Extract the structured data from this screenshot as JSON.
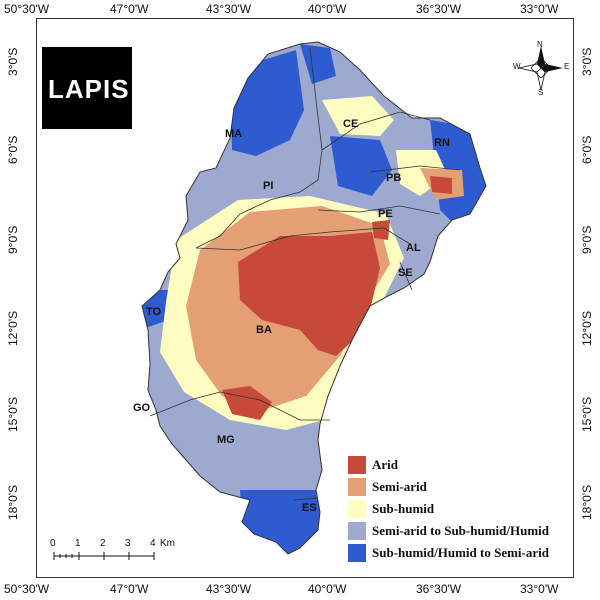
{
  "map": {
    "top_ticks": [
      "50°30'W",
      "47°0'W",
      "43°30'W",
      "40°0'W",
      "36°30'W",
      "33°0'W"
    ],
    "bottom_ticks": [
      "50°30'W",
      "47°0'W",
      "43°30'W",
      "40°0'W",
      "36°30'W",
      "33°0'W"
    ],
    "left_ticks": [
      "3°0'S",
      "6°0'S",
      "9°0'S",
      "12°0'S",
      "15°0'S",
      "18°0'S"
    ],
    "right_ticks": [
      "3°0'S",
      "6°0'S",
      "9°0'S",
      "12°0'S",
      "15°0'S",
      "18°0'S"
    ],
    "states": [
      "MA",
      "CE",
      "RN",
      "PI",
      "PB",
      "PE",
      "AL",
      "SE",
      "TO",
      "BA",
      "GO",
      "MG",
      "ES"
    ],
    "logo_text": "LAPIS",
    "compass_letters": [
      "N",
      "S",
      "E",
      "W"
    ],
    "scale": {
      "ticks": [
        "0",
        "1",
        "2",
        "3",
        "4"
      ],
      "unit": "Km"
    }
  },
  "legend": [
    {
      "label": "Arid",
      "color": "#c6493a"
    },
    {
      "label": "Semi-arid",
      "color": "#e59f74"
    },
    {
      "label": "Sub-humid",
      "color": "#fefcc0"
    },
    {
      "label": "Semi-arid to Sub-humid/Humid",
      "color": "#9ea9cf"
    },
    {
      "label": "Sub-humid/Humid to Semi-arid",
      "color": "#2f5bd0"
    }
  ]
}
